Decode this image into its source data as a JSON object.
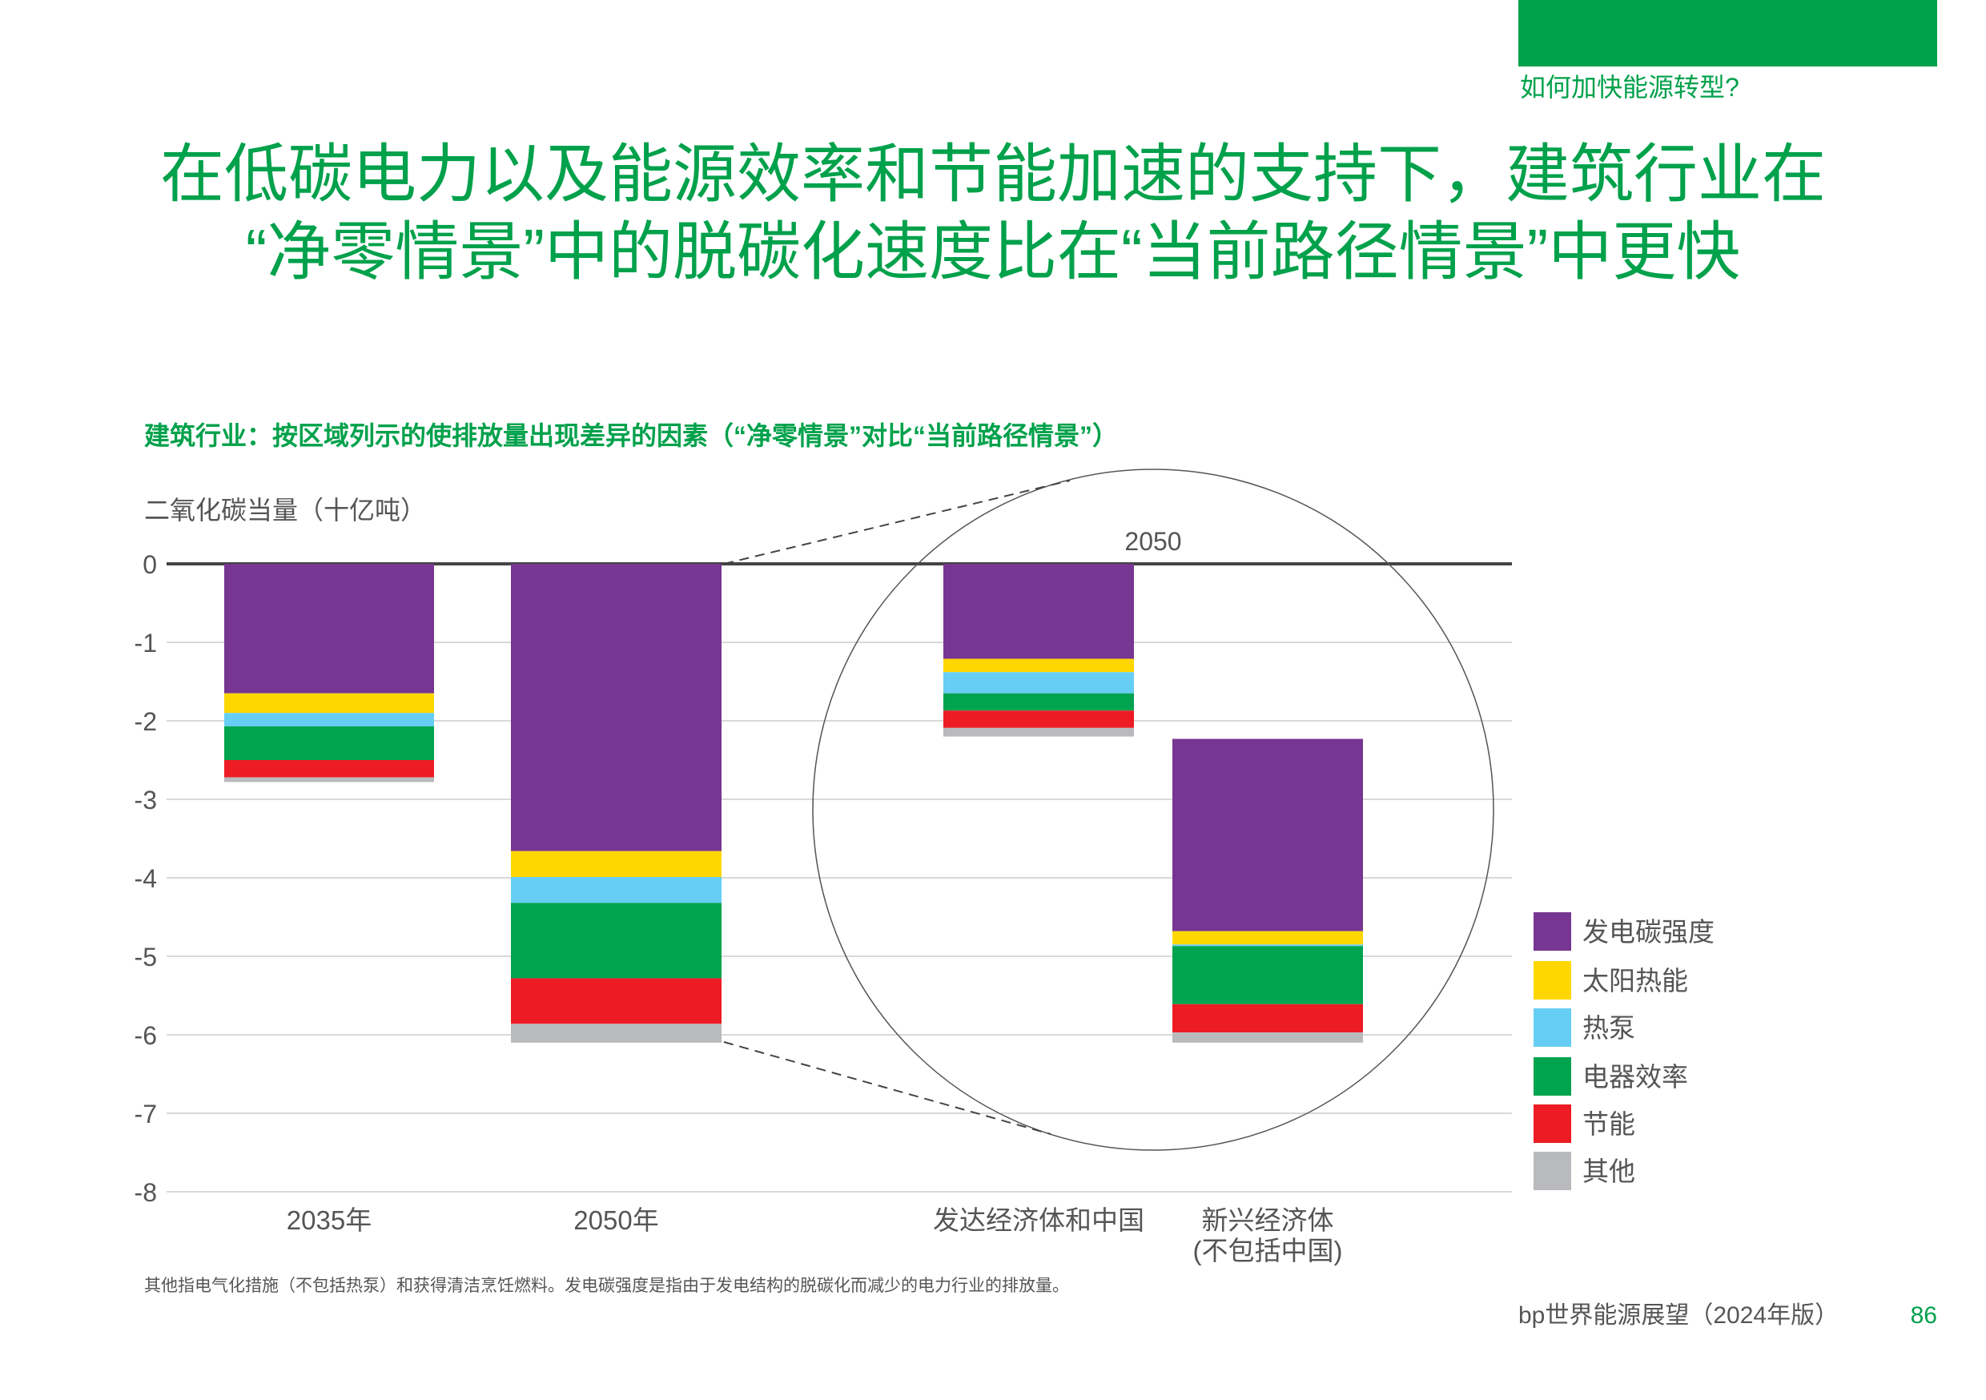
{
  "header": {
    "section": "如何加快能源转型?",
    "accent": "#00a14b"
  },
  "title": {
    "line1": "在低碳电力以及能源效率和节能加速的支持下，建筑行业在",
    "line2": "“净零情景”中的脱碳化速度比在“当前路径情景”中更快"
  },
  "chart_data": {
    "type": "bar",
    "stacked": true,
    "title": "建筑行业：按区域列示的使排放量出现差异的因素（“净零情景”对比“当前路径情景”）",
    "ylabel": "二氧化碳当量（十亿吨）",
    "xlabel": "",
    "ylim": [
      -8,
      0
    ],
    "yticks": [
      0,
      -1,
      -2,
      -3,
      -4,
      -5,
      -6,
      -7,
      -8
    ],
    "grid": true,
    "annotation": "2050",
    "categories": [
      "2035年",
      "2050年",
      "发达经济体和中国",
      "新兴经济体|(不包括中国)"
    ],
    "base_offsets": [
      0,
      0,
      0,
      -2.23
    ],
    "series": [
      {
        "name": "发电碳强度",
        "color": "#763692",
        "values": [
          -1.65,
          -3.66,
          -1.21,
          -2.45
        ]
      },
      {
        "name": "太阳热能",
        "color": "#ffd700",
        "values": [
          -0.25,
          -0.33,
          -0.17,
          -0.17
        ]
      },
      {
        "name": "热泵",
        "color": "#66cef5",
        "values": [
          -0.17,
          -0.33,
          -0.27,
          -0.02
        ]
      },
      {
        "name": "电器效率",
        "color": "#00a34f",
        "values": [
          -0.43,
          -0.96,
          -0.22,
          -0.74
        ]
      },
      {
        "name": "节能",
        "color": "#ed1c24",
        "values": [
          -0.22,
          -0.58,
          -0.22,
          -0.36
        ]
      },
      {
        "name": "其他",
        "color": "#b9babd",
        "values": [
          -0.06,
          -0.24,
          -0.11,
          -0.13
        ]
      }
    ],
    "legend_position": "right"
  },
  "footnote": "其他指电气化措施（不包括热泵）和获得清洁烹饪燃料。发电碳强度是指由于发电结构的脱碳化而减少的电力行业的排放量。",
  "footer": {
    "publication": "bp世界能源展望（2024年版）",
    "page": "86"
  }
}
